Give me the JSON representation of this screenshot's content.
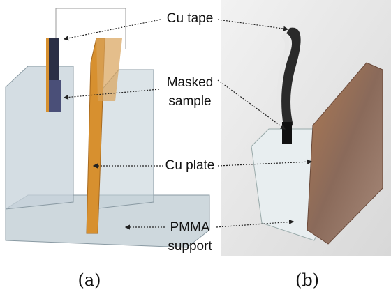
{
  "labels": [
    {
      "lines": [
        "Cu tape"
      ]
    },
    {
      "lines": [
        "Masked",
        "sample"
      ]
    },
    {
      "lines": [
        "Cu plate"
      ]
    },
    {
      "lines": [
        "PMMA",
        "support"
      ]
    }
  ],
  "panels": [
    "(a)",
    "(b)"
  ]
}
